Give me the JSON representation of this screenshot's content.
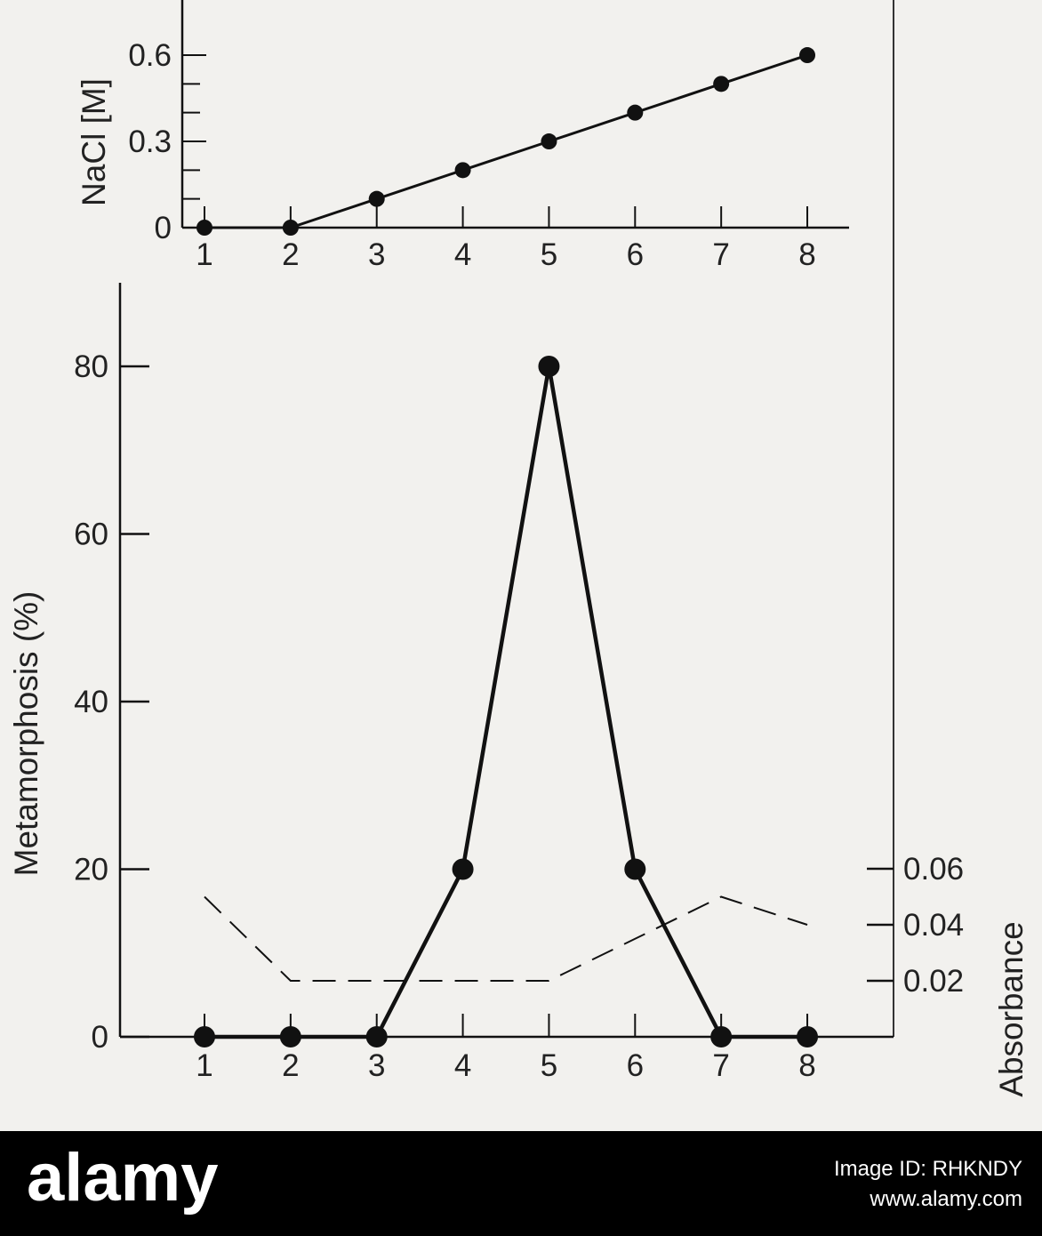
{
  "chart_data": [
    {
      "type": "line",
      "x": [
        1,
        2,
        3,
        4,
        5,
        6,
        7,
        8
      ],
      "series": [
        {
          "values": [
            0,
            0,
            0.1,
            0.2,
            0.3,
            0.4,
            0.5,
            0.6
          ]
        }
      ],
      "xlabel": "",
      "ylabel": "NaCl [M]",
      "yticks": [
        "0",
        "0.3",
        "0.6"
      ],
      "xticks": [
        "1",
        "2",
        "3",
        "4",
        "5",
        "6",
        "7",
        "8"
      ],
      "ylim": [
        0,
        0.6
      ]
    },
    {
      "type": "line",
      "x": [
        1,
        2,
        3,
        4,
        5,
        6,
        7,
        8
      ],
      "series": [
        {
          "axis": "left",
          "style": "solid",
          "values": [
            0,
            0,
            0,
            20,
            80,
            20,
            0,
            0
          ]
        },
        {
          "axis": "right",
          "style": "dashed",
          "values": [
            0.05,
            0.02,
            0.02,
            0.02,
            0.02,
            0.035,
            0.05,
            0.04
          ]
        }
      ],
      "xlabel": "",
      "ylabel": "Metamorphosis (%)",
      "y2label": "Absorbance",
      "yticks": [
        "0",
        "20",
        "40",
        "60",
        "80"
      ],
      "y2ticks": [
        "0.02",
        "0.04",
        "0.06"
      ],
      "xticks": [
        "1",
        "2",
        "3",
        "4",
        "5",
        "6",
        "7",
        "8"
      ],
      "ylim": [
        0,
        80
      ]
    }
  ],
  "watermark": {
    "logo": "alamy",
    "image_id": "Image ID: RHKNDY",
    "url": "www.alamy.com"
  }
}
